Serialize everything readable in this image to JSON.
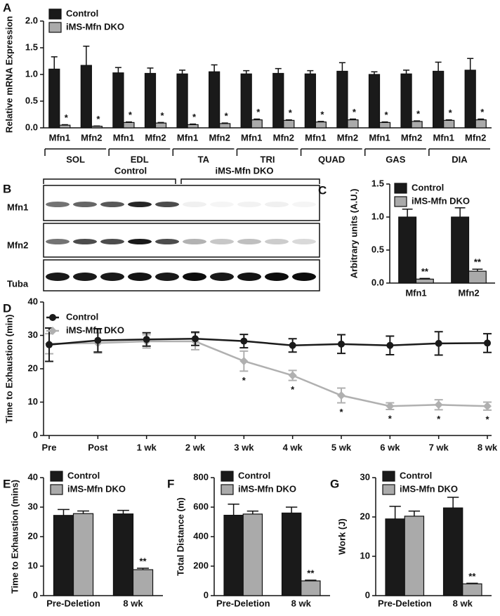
{
  "chart_data": [
    {
      "type": "bar",
      "label": "A",
      "ylabel": "Relative mRNA Expression",
      "categories": [
        "Mfn1",
        "Mfn2",
        "Mfn1",
        "Mfn2",
        "Mfn1",
        "Mfn2",
        "Mfn1",
        "Mfn2",
        "Mfn1",
        "Mfn2",
        "Mfn1",
        "Mfn2",
        "Mfn1",
        "Mfn2"
      ],
      "groups": [
        "SOL",
        "EDL",
        "TA",
        "TRI",
        "QUAD",
        "GAS",
        "DIA"
      ],
      "series": [
        {
          "name": "Control",
          "color": "#1a1a1a",
          "values": [
            1.1,
            1.17,
            1.03,
            1.02,
            1.01,
            1.05,
            1.01,
            1.02,
            1.01,
            1.06,
            1.0,
            1.01,
            1.06,
            1.08
          ],
          "errors": [
            0.23,
            0.36,
            0.1,
            0.1,
            0.07,
            0.13,
            0.06,
            0.09,
            0.06,
            0.16,
            0.05,
            0.07,
            0.17,
            0.22
          ]
        },
        {
          "name": "iMS-Mfn DKO",
          "color": "#aaaaaa",
          "values": [
            0.05,
            0.03,
            0.1,
            0.09,
            0.06,
            0.08,
            0.15,
            0.14,
            0.11,
            0.15,
            0.1,
            0.12,
            0.14,
            0.15
          ],
          "errors": [
            0.01,
            0.005,
            0.01,
            0.01,
            0.01,
            0.01,
            0.015,
            0.01,
            0.01,
            0.015,
            0.01,
            0.01,
            0.01,
            0.015
          ],
          "significance": [
            "*",
            "*",
            "*",
            "*",
            "*",
            "*",
            "*",
            "*",
            "*",
            "*",
            "*",
            "*",
            "*",
            "*"
          ]
        }
      ],
      "ylim": [
        0,
        2.0
      ],
      "yticks": [
        {
          "value": 0,
          "label": "0.0"
        },
        0.5,
        {
          "value": 1,
          "label": "1.0"
        },
        1.5,
        {
          "value": 2,
          "label": "2.0"
        }
      ]
    },
    {
      "type": "bar",
      "label": "C",
      "ylabel": "Arbitrary units (A.U.)",
      "categories": [
        "Mfn1",
        "Mfn2"
      ],
      "series": [
        {
          "name": "Control",
          "color": "#1a1a1a",
          "values": [
            1.0,
            1.0
          ],
          "errors": [
            0.12,
            0.14
          ]
        },
        {
          "name": "iMS-Mfn DKO",
          "color": "#aaaaaa",
          "values": [
            0.06,
            0.18
          ],
          "errors": [
            0.01,
            0.03
          ],
          "significance": [
            "**",
            "**"
          ]
        }
      ],
      "ylim": [
        0,
        1.5
      ],
      "yticks": [
        {
          "value": 0,
          "label": "0.0"
        },
        0.5,
        {
          "value": 1,
          "label": "1.0"
        },
        1.5
      ]
    },
    {
      "type": "line",
      "label": "D",
      "ylabel": "Time to Exhaustion (min)",
      "categories": [
        "Pre",
        "Post",
        "1 wk",
        "2 wk",
        "3 wk",
        "4 wk",
        "5 wk",
        "6 wk",
        "7 wk",
        "8 wk"
      ],
      "series": [
        {
          "name": "Control",
          "color": "#1a1a1a",
          "marker": "circle",
          "values": [
            27.2,
            28.5,
            28.8,
            29,
            28.3,
            27,
            27.4,
            27,
            27.6,
            27.7
          ],
          "errors": [
            5,
            3.5,
            2,
            2,
            2,
            2,
            2.8,
            2.8,
            3.5,
            2.8
          ]
        },
        {
          "name": "iMS-Mfn DKO",
          "color": "#b0b0b0",
          "marker": "diamond",
          "values": [
            27.5,
            27.7,
            28.2,
            28.2,
            22.3,
            18,
            12,
            8.8,
            9.2,
            8.8
          ],
          "errors": [
            3,
            3,
            2,
            2.5,
            3,
            1.5,
            2.2,
            1,
            1.5,
            1.2
          ],
          "significance": [
            null,
            null,
            null,
            null,
            "*",
            "*",
            "*",
            "*",
            "*",
            "*"
          ]
        }
      ],
      "ylim": [
        0,
        40
      ],
      "yticks": [
        0,
        10,
        20,
        30,
        40
      ]
    },
    {
      "type": "bar",
      "label": "E",
      "ylabel": "Time to Exhaustion (mins)",
      "categories": [
        "Pre-Deletion",
        "8 wk"
      ],
      "series": [
        {
          "name": "Control",
          "color": "#1a1a1a",
          "values": [
            27.2,
            27.7
          ],
          "errors": [
            2,
            1.2
          ]
        },
        {
          "name": "iMS-Mfn DKO",
          "color": "#aaaaaa",
          "values": [
            27.8,
            8.8
          ],
          "errors": [
            0.9,
            0.5
          ],
          "significance": [
            null,
            "**"
          ]
        }
      ],
      "ylim": [
        0,
        40
      ],
      "yticks": [
        0,
        10,
        20,
        30,
        40
      ]
    },
    {
      "type": "bar",
      "label": "F",
      "ylabel": "Total Distance (m)",
      "categories": [
        "Pre-Deletion",
        "8 wk"
      ],
      "series": [
        {
          "name": "Control",
          "color": "#1a1a1a",
          "values": [
            545,
            560
          ],
          "errors": [
            75,
            40
          ]
        },
        {
          "name": "iMS-Mfn DKO",
          "color": "#aaaaaa",
          "values": [
            553,
            100
          ],
          "errors": [
            20,
            5
          ],
          "significance": [
            null,
            "**"
          ]
        }
      ],
      "ylim": [
        0,
        800
      ],
      "yticks": [
        0,
        200,
        400,
        600,
        800
      ]
    },
    {
      "type": "bar",
      "label": "G",
      "ylabel": "Work (J)",
      "categories": [
        "Pre-Deletion",
        "8 wk"
      ],
      "series": [
        {
          "name": "Control",
          "color": "#1a1a1a",
          "values": [
            19.5,
            22.3
          ],
          "errors": [
            3.2,
            2.7
          ]
        },
        {
          "name": "iMS-Mfn DKO",
          "color": "#aaaaaa",
          "values": [
            20.2,
            3
          ],
          "errors": [
            1.3,
            0.15
          ],
          "significance": [
            null,
            "**"
          ]
        }
      ],
      "ylim": [
        0,
        30
      ],
      "yticks": [
        0,
        10,
        20,
        30
      ]
    }
  ],
  "blot": {
    "label": "B",
    "groups": [
      "Control",
      "iMS-Mfn DKO"
    ],
    "rows": [
      "Mfn1",
      "Mfn2",
      "Tuba"
    ]
  }
}
